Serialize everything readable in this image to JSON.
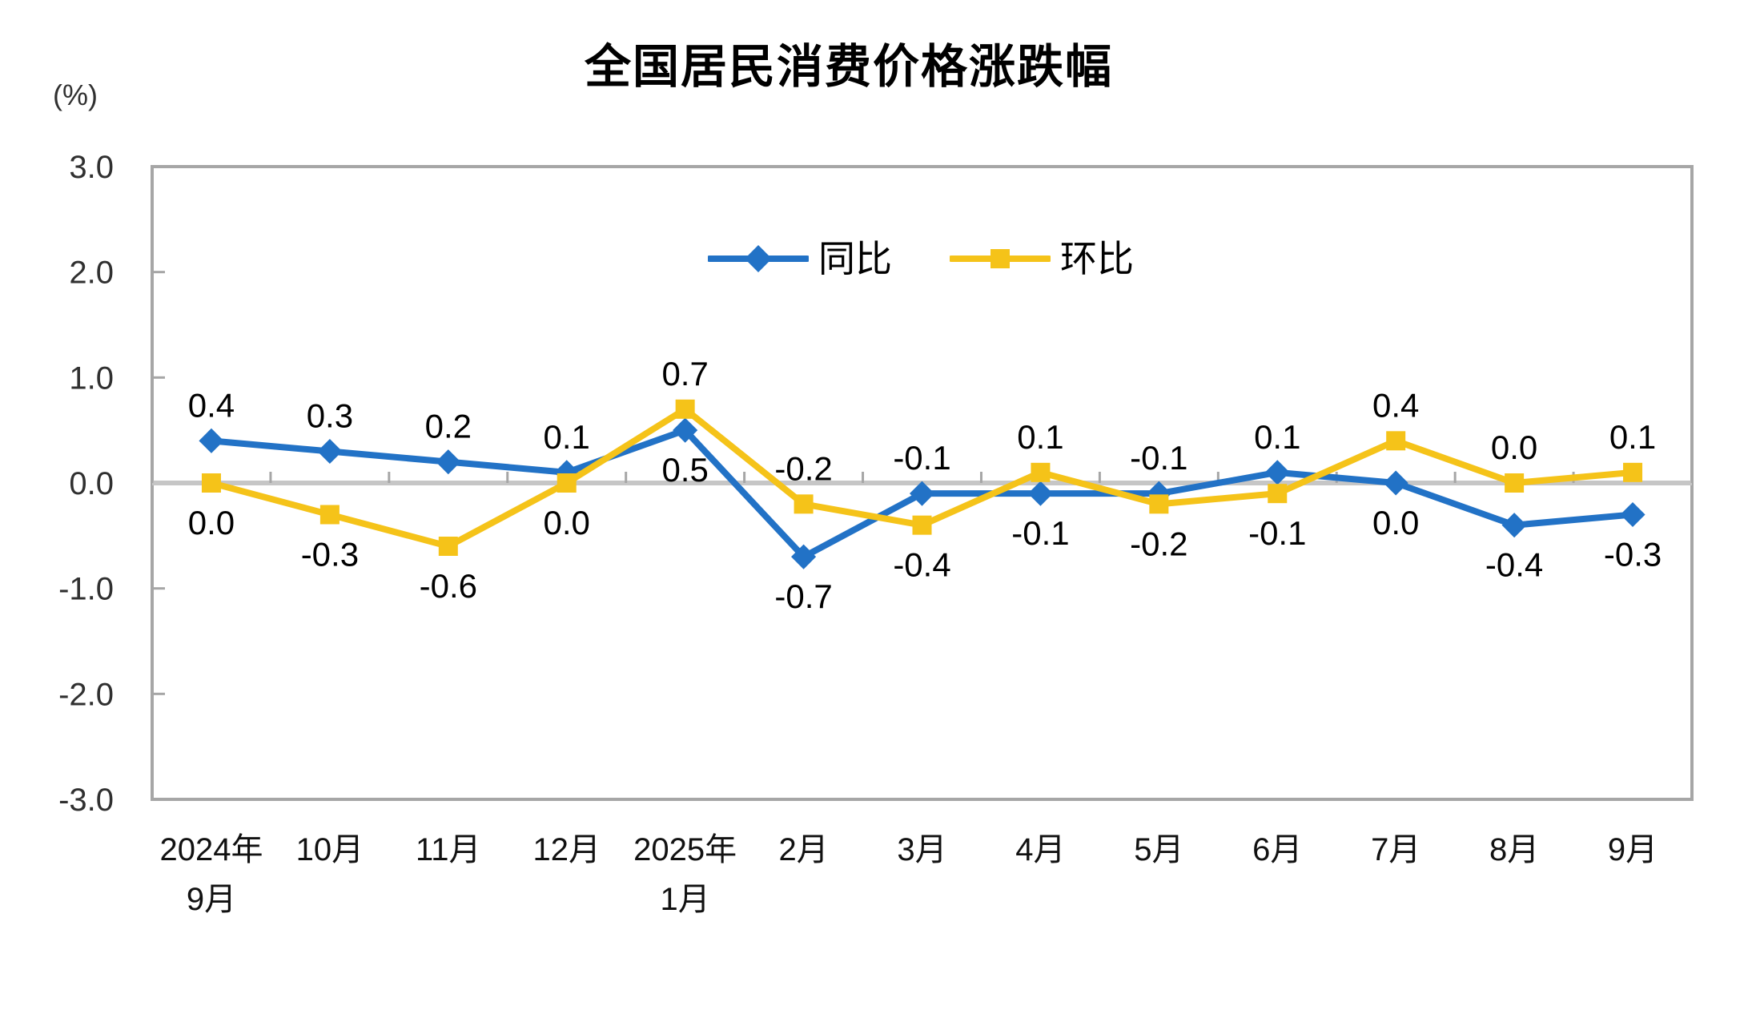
{
  "chart_data": {
    "type": "line",
    "title": "全国居民消费价格涨跌幅",
    "unit_label": "(%)",
    "categories": [
      [
        "2024年",
        "9月"
      ],
      [
        "10月"
      ],
      [
        "11月"
      ],
      [
        "12月"
      ],
      [
        "2025年",
        "1月"
      ],
      [
        "2月"
      ],
      [
        "3月"
      ],
      [
        "4月"
      ],
      [
        "5月"
      ],
      [
        "6月"
      ],
      [
        "7月"
      ],
      [
        "8月"
      ],
      [
        "9月"
      ]
    ],
    "series": [
      {
        "key": "yoy",
        "name": "同比",
        "marker": "diamond",
        "color": "#2272C6",
        "values": [
          0.4,
          0.3,
          0.2,
          0.1,
          0.5,
          -0.7,
          -0.1,
          -0.1,
          -0.1,
          0.1,
          0.0,
          -0.4,
          -0.3
        ]
      },
      {
        "key": "mom",
        "name": "环比",
        "marker": "square",
        "color": "#F5C319",
        "values": [
          0.0,
          -0.3,
          -0.6,
          0.0,
          0.7,
          -0.2,
          -0.4,
          0.1,
          -0.2,
          -0.1,
          0.4,
          0.0,
          0.1
        ]
      }
    ],
    "y_ticks": [
      "3.0",
      "2.0",
      "1.0",
      "0.0",
      "-1.0",
      "-2.0",
      "-3.0"
    ],
    "ylim": [
      -3,
      3
    ],
    "grid": "off",
    "legend_position": "top-center-inside",
    "colors": {
      "plot_border": "#A6A6A6",
      "zero_line": "#C6C6C6",
      "label_text": "#000000"
    }
  }
}
